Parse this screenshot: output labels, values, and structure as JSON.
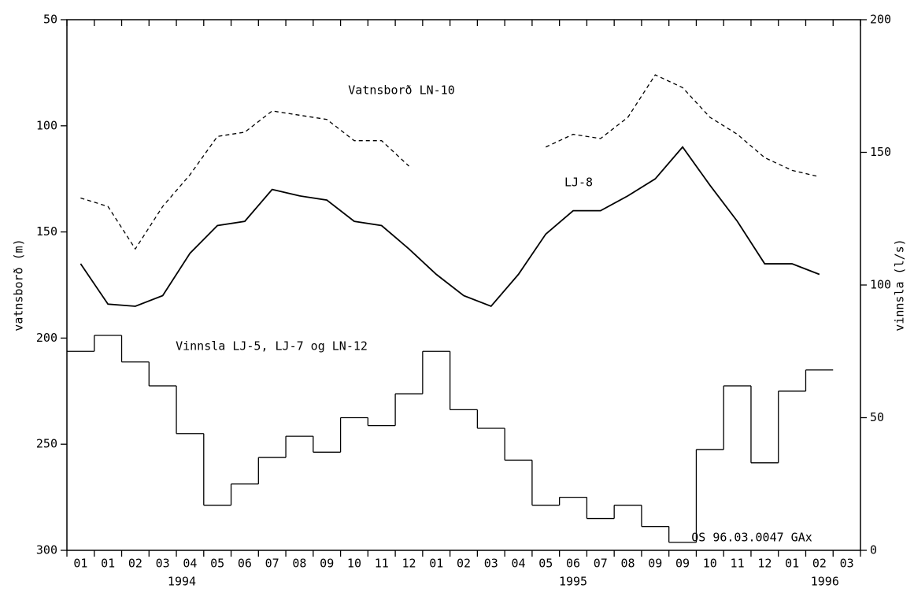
{
  "chart_data": {
    "type": "line",
    "ylabel": "vatnsborð (m)",
    "y2label": "vinnsla (l/s)",
    "ylim": [
      300,
      50
    ],
    "yticks": [
      50,
      100,
      150,
      200,
      250,
      300
    ],
    "y2lim": [
      0,
      200
    ],
    "y2ticks": [
      0,
      50,
      100,
      150,
      200
    ],
    "categories": [
      "01",
      "01",
      "02",
      "03",
      "04",
      "05",
      "06",
      "07",
      "08",
      "09",
      "10",
      "11",
      "12",
      "01",
      "02",
      "03",
      "04",
      "05",
      "06",
      "07",
      "08",
      "09",
      "09",
      "10",
      "11",
      "12",
      "01",
      "02",
      "03"
    ],
    "years": [
      "1994",
      "1995",
      "1996"
    ],
    "annotation": "OS 96.03.0047 GAx",
    "color": "#000000",
    "series": [
      {
        "name": "Vatnsborð LN-10",
        "style": "dashed",
        "values": [
          134,
          138,
          158,
          138,
          123,
          105,
          103,
          93,
          95,
          97,
          107,
          107,
          119,
          null,
          null,
          null,
          null,
          110,
          104,
          106,
          96,
          76,
          82,
          96,
          104,
          115,
          121,
          124,
          null
        ]
      },
      {
        "name": "LJ-8",
        "style": "solid",
        "values": [
          165,
          184,
          185,
          180,
          160,
          147,
          145,
          130,
          133,
          135,
          145,
          147,
          158,
          170,
          180,
          185,
          170,
          151,
          140,
          140,
          133,
          125,
          110,
          128,
          145,
          165,
          165,
          170,
          null
        ]
      },
      {
        "name": "Vinnsla LJ-5, LJ-7 og LN-12",
        "style": "step",
        "axis": "y2",
        "values": [
          75,
          81,
          71,
          62,
          44,
          17,
          25,
          35,
          43,
          37,
          50,
          47,
          59,
          75,
          53,
          46,
          34,
          17,
          20,
          12,
          17,
          9,
          3,
          38,
          62,
          33,
          60,
          68,
          null
        ]
      }
    ]
  }
}
